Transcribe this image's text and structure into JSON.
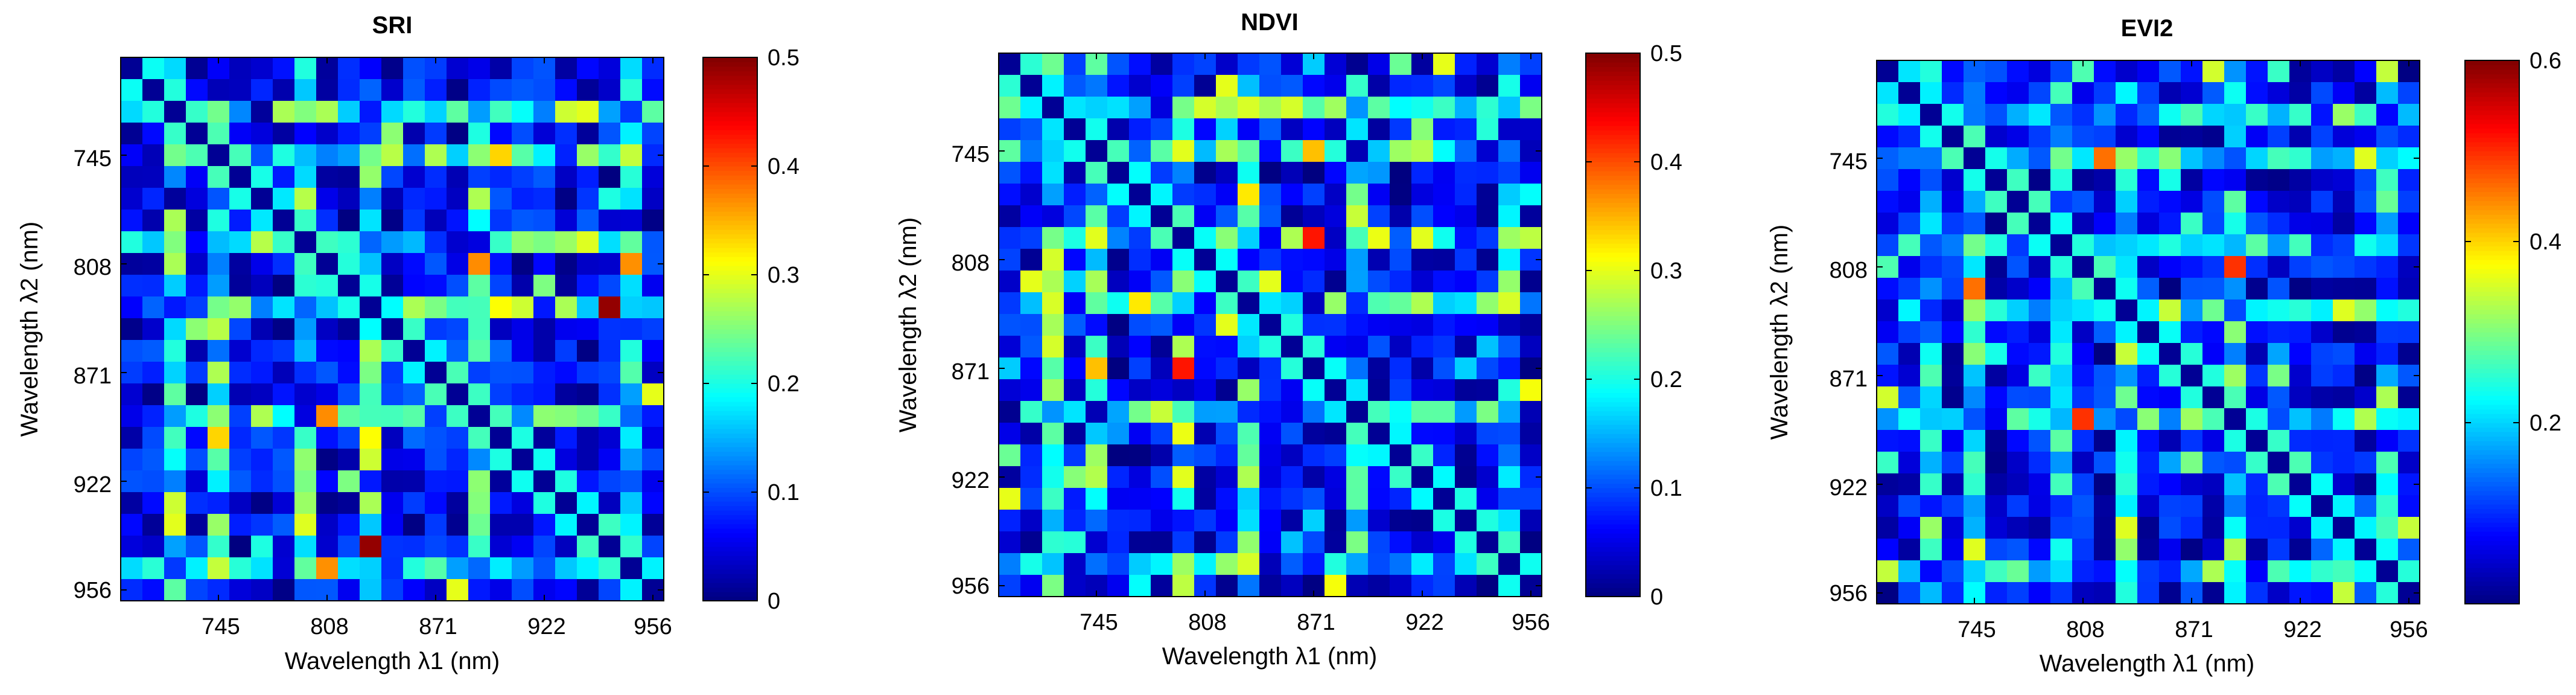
{
  "figure": {
    "colormap": "jet"
  },
  "chart_data": [
    {
      "type": "heatmap",
      "title": "SRI",
      "xlabel": "Wavelength λ1 (nm)",
      "ylabel": "Wavelength λ2 (nm)",
      "grid_size": 25,
      "tick_indices": [
        4,
        9,
        14,
        19,
        24
      ],
      "xticks": [
        "745",
        "808",
        "871",
        "922",
        "956"
      ],
      "yticks": [
        "745",
        "808",
        "871",
        "922",
        "956"
      ],
      "vmin": 0,
      "vmax": 0.5,
      "colorbar_ticks": [
        0,
        0.1,
        0.2,
        0.3,
        0.4,
        0.5
      ],
      "colorbar_tick_labels": [
        "0",
        "0.1",
        "0.2",
        "0.3",
        "0.4",
        "0.5"
      ],
      "seed": 11
    },
    {
      "type": "heatmap",
      "title": "NDVI",
      "xlabel": "Wavelength λ1 (nm)",
      "ylabel": "Wavelength λ2 (nm)",
      "grid_size": 25,
      "tick_indices": [
        4,
        9,
        14,
        19,
        24
      ],
      "xticks": [
        "745",
        "808",
        "871",
        "922",
        "956"
      ],
      "yticks": [
        "745",
        "808",
        "871",
        "922",
        "956"
      ],
      "vmin": 0,
      "vmax": 0.5,
      "colorbar_ticks": [
        0,
        0.1,
        0.2,
        0.3,
        0.4,
        0.5
      ],
      "colorbar_tick_labels": [
        "0",
        "0.1",
        "0.2",
        "0.3",
        "0.4",
        "0.5"
      ],
      "seed": 29
    },
    {
      "type": "heatmap",
      "title": "EVI2",
      "xlabel": "Wavelength λ1 (nm)",
      "ylabel": "Wavelength λ2 (nm)",
      "grid_size": 25,
      "tick_indices": [
        4,
        9,
        14,
        19,
        24
      ],
      "xticks": [
        "745",
        "808",
        "871",
        "922",
        "956"
      ],
      "yticks": [
        "745",
        "808",
        "871",
        "922",
        "956"
      ],
      "vmin": 0,
      "vmax": 0.6,
      "colorbar_ticks": [
        0.2,
        0.4,
        0.6
      ],
      "colorbar_tick_labels": [
        "0.2",
        "0.4",
        "0.6"
      ],
      "seed": 47
    }
  ]
}
